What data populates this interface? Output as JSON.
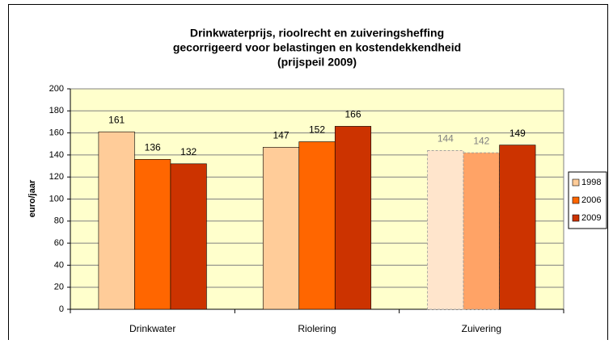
{
  "chart_data": {
    "type": "bar",
    "title": [
      "Drinkwaterprijs, rioolrecht en zuiveringsheffing",
      "gecorrigeerd voor belastingen en kostendekkendheid",
      "(prijspeil 2009)"
    ],
    "y_label": "euro/jaar",
    "categories": [
      "Drinkwater",
      "Riolering",
      "Zuivering"
    ],
    "series": [
      {
        "name": "1998",
        "color": "#ffcc99",
        "values": [
          161,
          147,
          144
        ],
        "colors": [
          "#ffcc99",
          "#ffcc99",
          "#ffe5cc"
        ],
        "label_colors": [
          "#000000",
          "#000000",
          "#808080"
        ]
      },
      {
        "name": "2006",
        "color": "#ff6600",
        "values": [
          136,
          152,
          142
        ],
        "colors": [
          "#ff6600",
          "#ff6600",
          "#ffa366"
        ],
        "label_colors": [
          "#000000",
          "#000000",
          "#808080"
        ]
      },
      {
        "name": "2009",
        "color": "#cc3300",
        "values": [
          132,
          166,
          149
        ]
      }
    ],
    "ylim": [
      0,
      200
    ],
    "yticks": [
      0,
      20,
      40,
      60,
      80,
      100,
      120,
      140,
      160,
      180,
      200
    ],
    "grid": true,
    "legend": "right",
    "plot_background": "#ffffcc"
  }
}
